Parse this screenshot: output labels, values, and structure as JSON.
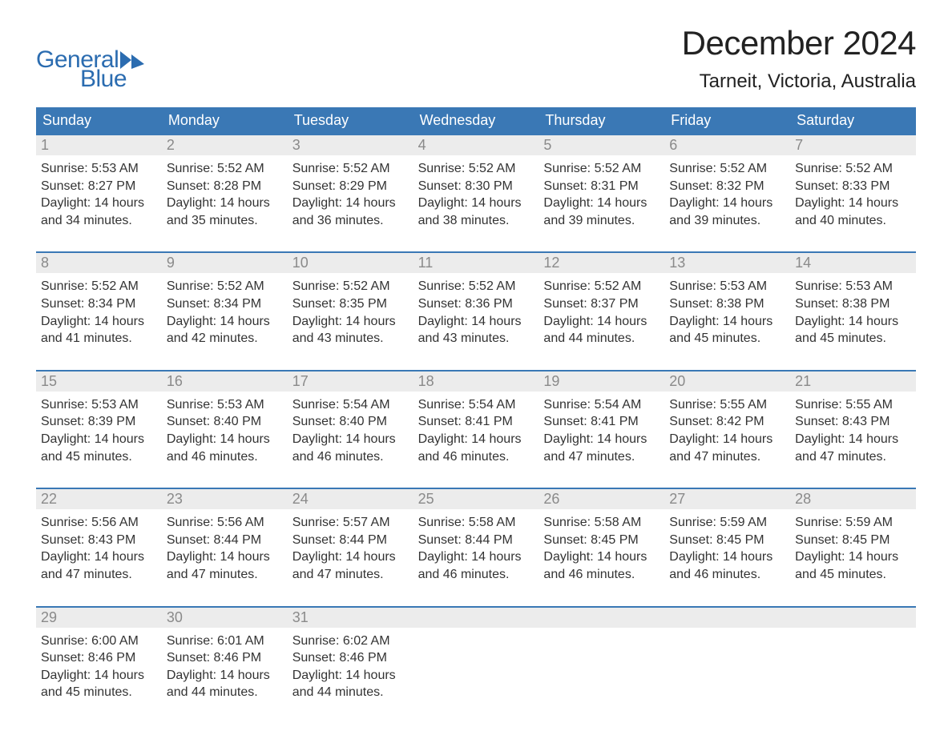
{
  "logo": {
    "text1": "General",
    "text2": "Blue",
    "flag_color": "#2b6cb0"
  },
  "title": "December 2024",
  "location": "Tarneit, Victoria, Australia",
  "colors": {
    "header_bg": "#3a78b5",
    "header_text": "#ffffff",
    "daynum_bg": "#ececec",
    "daynum_text": "#8a8a8a",
    "body_text": "#333333",
    "week_border": "#3a78b5",
    "logo_color": "#2b6cb0",
    "page_bg": "#ffffff"
  },
  "weekdays": [
    "Sunday",
    "Monday",
    "Tuesday",
    "Wednesday",
    "Thursday",
    "Friday",
    "Saturday"
  ],
  "weeks": [
    [
      {
        "n": "1",
        "sunrise": "5:53 AM",
        "sunset": "8:27 PM",
        "dh": "14",
        "dm": "34"
      },
      {
        "n": "2",
        "sunrise": "5:52 AM",
        "sunset": "8:28 PM",
        "dh": "14",
        "dm": "35"
      },
      {
        "n": "3",
        "sunrise": "5:52 AM",
        "sunset": "8:29 PM",
        "dh": "14",
        "dm": "36"
      },
      {
        "n": "4",
        "sunrise": "5:52 AM",
        "sunset": "8:30 PM",
        "dh": "14",
        "dm": "38"
      },
      {
        "n": "5",
        "sunrise": "5:52 AM",
        "sunset": "8:31 PM",
        "dh": "14",
        "dm": "39"
      },
      {
        "n": "6",
        "sunrise": "5:52 AM",
        "sunset": "8:32 PM",
        "dh": "14",
        "dm": "39"
      },
      {
        "n": "7",
        "sunrise": "5:52 AM",
        "sunset": "8:33 PM",
        "dh": "14",
        "dm": "40"
      }
    ],
    [
      {
        "n": "8",
        "sunrise": "5:52 AM",
        "sunset": "8:34 PM",
        "dh": "14",
        "dm": "41"
      },
      {
        "n": "9",
        "sunrise": "5:52 AM",
        "sunset": "8:34 PM",
        "dh": "14",
        "dm": "42"
      },
      {
        "n": "10",
        "sunrise": "5:52 AM",
        "sunset": "8:35 PM",
        "dh": "14",
        "dm": "43"
      },
      {
        "n": "11",
        "sunrise": "5:52 AM",
        "sunset": "8:36 PM",
        "dh": "14",
        "dm": "43"
      },
      {
        "n": "12",
        "sunrise": "5:52 AM",
        "sunset": "8:37 PM",
        "dh": "14",
        "dm": "44"
      },
      {
        "n": "13",
        "sunrise": "5:53 AM",
        "sunset": "8:38 PM",
        "dh": "14",
        "dm": "45"
      },
      {
        "n": "14",
        "sunrise": "5:53 AM",
        "sunset": "8:38 PM",
        "dh": "14",
        "dm": "45"
      }
    ],
    [
      {
        "n": "15",
        "sunrise": "5:53 AM",
        "sunset": "8:39 PM",
        "dh": "14",
        "dm": "45"
      },
      {
        "n": "16",
        "sunrise": "5:53 AM",
        "sunset": "8:40 PM",
        "dh": "14",
        "dm": "46"
      },
      {
        "n": "17",
        "sunrise": "5:54 AM",
        "sunset": "8:40 PM",
        "dh": "14",
        "dm": "46"
      },
      {
        "n": "18",
        "sunrise": "5:54 AM",
        "sunset": "8:41 PM",
        "dh": "14",
        "dm": "46"
      },
      {
        "n": "19",
        "sunrise": "5:54 AM",
        "sunset": "8:41 PM",
        "dh": "14",
        "dm": "47"
      },
      {
        "n": "20",
        "sunrise": "5:55 AM",
        "sunset": "8:42 PM",
        "dh": "14",
        "dm": "47"
      },
      {
        "n": "21",
        "sunrise": "5:55 AM",
        "sunset": "8:43 PM",
        "dh": "14",
        "dm": "47"
      }
    ],
    [
      {
        "n": "22",
        "sunrise": "5:56 AM",
        "sunset": "8:43 PM",
        "dh": "14",
        "dm": "47"
      },
      {
        "n": "23",
        "sunrise": "5:56 AM",
        "sunset": "8:44 PM",
        "dh": "14",
        "dm": "47"
      },
      {
        "n": "24",
        "sunrise": "5:57 AM",
        "sunset": "8:44 PM",
        "dh": "14",
        "dm": "47"
      },
      {
        "n": "25",
        "sunrise": "5:58 AM",
        "sunset": "8:44 PM",
        "dh": "14",
        "dm": "46"
      },
      {
        "n": "26",
        "sunrise": "5:58 AM",
        "sunset": "8:45 PM",
        "dh": "14",
        "dm": "46"
      },
      {
        "n": "27",
        "sunrise": "5:59 AM",
        "sunset": "8:45 PM",
        "dh": "14",
        "dm": "46"
      },
      {
        "n": "28",
        "sunrise": "5:59 AM",
        "sunset": "8:45 PM",
        "dh": "14",
        "dm": "45"
      }
    ],
    [
      {
        "n": "29",
        "sunrise": "6:00 AM",
        "sunset": "8:46 PM",
        "dh": "14",
        "dm": "45"
      },
      {
        "n": "30",
        "sunrise": "6:01 AM",
        "sunset": "8:46 PM",
        "dh": "14",
        "dm": "44"
      },
      {
        "n": "31",
        "sunrise": "6:02 AM",
        "sunset": "8:46 PM",
        "dh": "14",
        "dm": "44"
      },
      null,
      null,
      null,
      null
    ]
  ],
  "labels": {
    "sunrise": "Sunrise:",
    "sunset": "Sunset:",
    "daylight_l1": "Daylight:",
    "hours_word": "hours",
    "and_word": "and",
    "minutes_word": "minutes."
  }
}
